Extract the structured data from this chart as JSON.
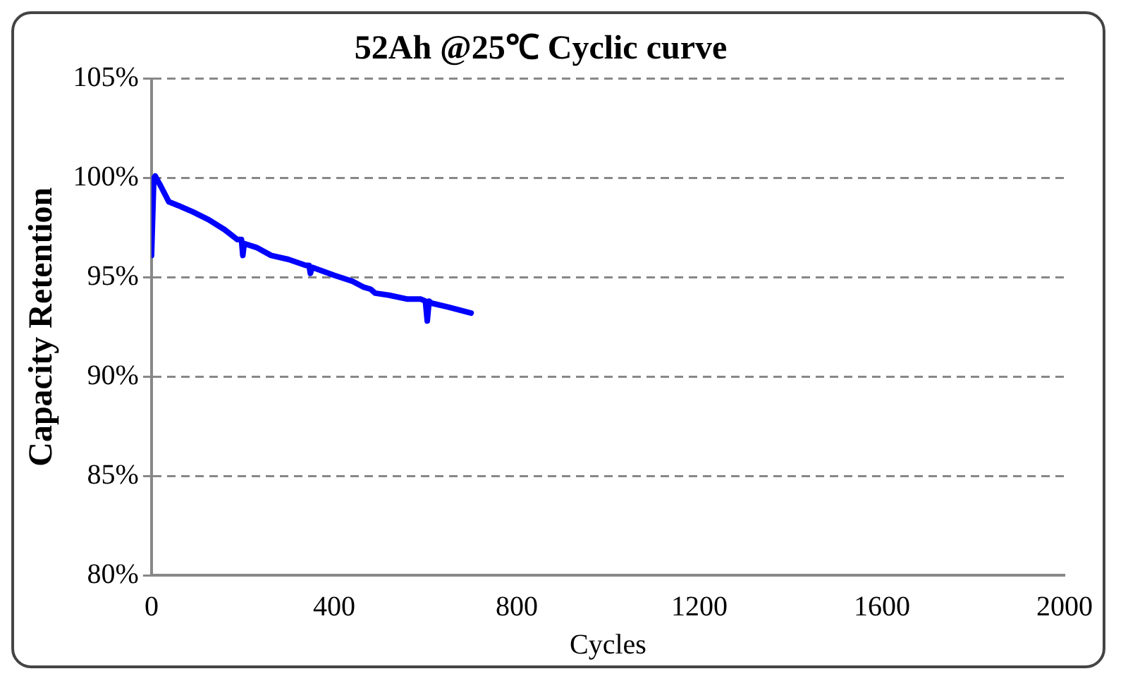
{
  "chart_data": {
    "type": "line",
    "title": "52Ah @25℃ Cyclic curve",
    "xlabel": "Cycles",
    "ylabel": "Capacity Retention",
    "series": [
      {
        "color": "#0000ff",
        "x": [
          0,
          5,
          8,
          20,
          38,
          60,
          90,
          125,
          160,
          188,
          197,
          200,
          203,
          230,
          262,
          300,
          338,
          345,
          348,
          352,
          400,
          440,
          465,
          480,
          490,
          520,
          561,
          590,
          600,
          604,
          608,
          613,
          650,
          700
        ],
        "values": [
          96.1,
          100,
          100.1,
          99.6,
          98.8,
          98.6,
          98.3,
          97.9,
          97.4,
          96.9,
          96.9,
          96.1,
          96.7,
          96.5,
          96.1,
          95.9,
          95.6,
          95.6,
          95.2,
          95.5,
          95.1,
          94.8,
          94.5,
          94.4,
          94.2,
          94.1,
          93.9,
          93.9,
          93.8,
          92.8,
          93.8,
          93.7,
          93.5,
          93.2
        ]
      }
    ],
    "xlim": [
      0,
      2000
    ],
    "xticks": [
      0,
      400,
      800,
      1200,
      1600,
      2000
    ],
    "ylim": [
      80,
      105
    ],
    "yticks": [
      {
        "value": 80,
        "label": "80%"
      },
      {
        "value": 85,
        "label": "85%"
      },
      {
        "value": 90,
        "label": "90%"
      },
      {
        "value": 95,
        "label": "95%"
      },
      {
        "value": 100,
        "label": "100%"
      },
      {
        "value": 105,
        "label": "105%"
      }
    ],
    "grid": "y",
    "legend": false,
    "marker": "none",
    "line_style": "solid"
  }
}
